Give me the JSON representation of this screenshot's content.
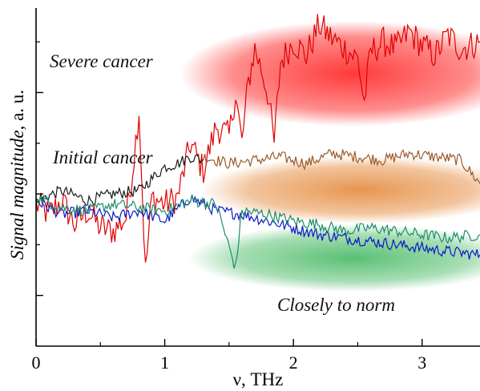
{
  "chart_data": {
    "type": "line",
    "xlabel": "ν, THz",
    "ylabel_italic": "Signal magnitude",
    "ylabel_rest": ", a. u.",
    "xlim": [
      0,
      3.45
    ],
    "ylim": [
      0,
      10
    ],
    "x_ticks": [
      {
        "value": 0,
        "label": "0"
      },
      {
        "value": 1,
        "label": "1"
      },
      {
        "value": 2,
        "label": "2"
      },
      {
        "value": 3,
        "label": "3"
      }
    ],
    "grid": false,
    "annotations": [
      {
        "text": "Severe cancer"
      },
      {
        "text": "Initial cancer"
      },
      {
        "text": "Closely to norm"
      }
    ],
    "highlight_colors": {
      "severe": "#ff3030",
      "initial": "#e58a3c",
      "norm": "#3cb55a"
    },
    "series": [
      {
        "color": "#e00000",
        "x": [
          0,
          0.1,
          0.2,
          0.3,
          0.4,
          0.5,
          0.6,
          0.7,
          0.75,
          0.8,
          0.85,
          0.9,
          1.0,
          1.1,
          1.2,
          1.3,
          1.4,
          1.5,
          1.55,
          1.6,
          1.65,
          1.7,
          1.75,
          1.8,
          1.85,
          1.9,
          2.0,
          2.1,
          2.2,
          2.3,
          2.4,
          2.5,
          2.55,
          2.6,
          2.7,
          2.8,
          2.9,
          3.0,
          3.1,
          3.2,
          3.3,
          3.45
        ],
        "y": [
          4.2,
          3.9,
          4.3,
          3.6,
          4.0,
          3.5,
          3.4,
          3.8,
          5.2,
          7.0,
          2.2,
          4.4,
          4.2,
          4.4,
          6.0,
          5.2,
          6.5,
          6.2,
          7.5,
          6.0,
          7.8,
          8.8,
          8.2,
          7.5,
          6.0,
          8.4,
          9.0,
          8.6,
          9.5,
          9.1,
          8.8,
          8.5,
          7.2,
          8.7,
          9.0,
          8.8,
          9.3,
          8.9,
          8.6,
          9.2,
          8.8,
          9.0
        ]
      },
      {
        "color": "#1a1a1a",
        "x": [
          0,
          0.2,
          0.4,
          0.6,
          0.8,
          1.0,
          1.1,
          1.2,
          1.3
        ],
        "y": [
          4.3,
          4.6,
          4.3,
          4.5,
          4.6,
          5.3,
          5.4,
          5.6,
          5.5
        ]
      },
      {
        "color": "#9a5a2a",
        "x": [
          1.3,
          1.5,
          1.7,
          1.9,
          2.1,
          2.3,
          2.5,
          2.7,
          2.9,
          3.1,
          3.3,
          3.45
        ],
        "y": [
          5.6,
          5.4,
          5.5,
          5.6,
          5.4,
          5.7,
          5.6,
          5.5,
          5.7,
          5.6,
          5.5,
          4.8
        ]
      },
      {
        "color": "#0a18c8",
        "x": [
          0,
          0.2,
          0.4,
          0.6,
          0.8,
          1.0,
          1.2,
          1.4,
          1.6,
          1.8,
          2.0,
          2.2,
          2.4,
          2.6,
          2.8,
          3.0,
          3.2,
          3.45
        ],
        "y": [
          4.3,
          3.9,
          4.0,
          3.8,
          4.0,
          3.7,
          4.4,
          4.0,
          3.9,
          3.7,
          3.5,
          3.3,
          3.2,
          3.1,
          3.0,
          2.9,
          2.8,
          2.7
        ]
      },
      {
        "color": "#1e8c6a",
        "x": [
          0,
          0.2,
          0.4,
          0.6,
          0.8,
          1.0,
          1.2,
          1.4,
          1.55,
          1.6,
          1.8,
          2.0,
          2.2,
          2.4,
          2.6,
          2.8,
          3.0,
          3.2,
          3.45
        ],
        "y": [
          4.4,
          4.1,
          4.0,
          4.2,
          4.1,
          4.0,
          4.3,
          4.2,
          2.3,
          4.0,
          3.9,
          3.7,
          3.6,
          3.4,
          3.5,
          3.4,
          3.3,
          3.2,
          3.3
        ]
      }
    ]
  }
}
